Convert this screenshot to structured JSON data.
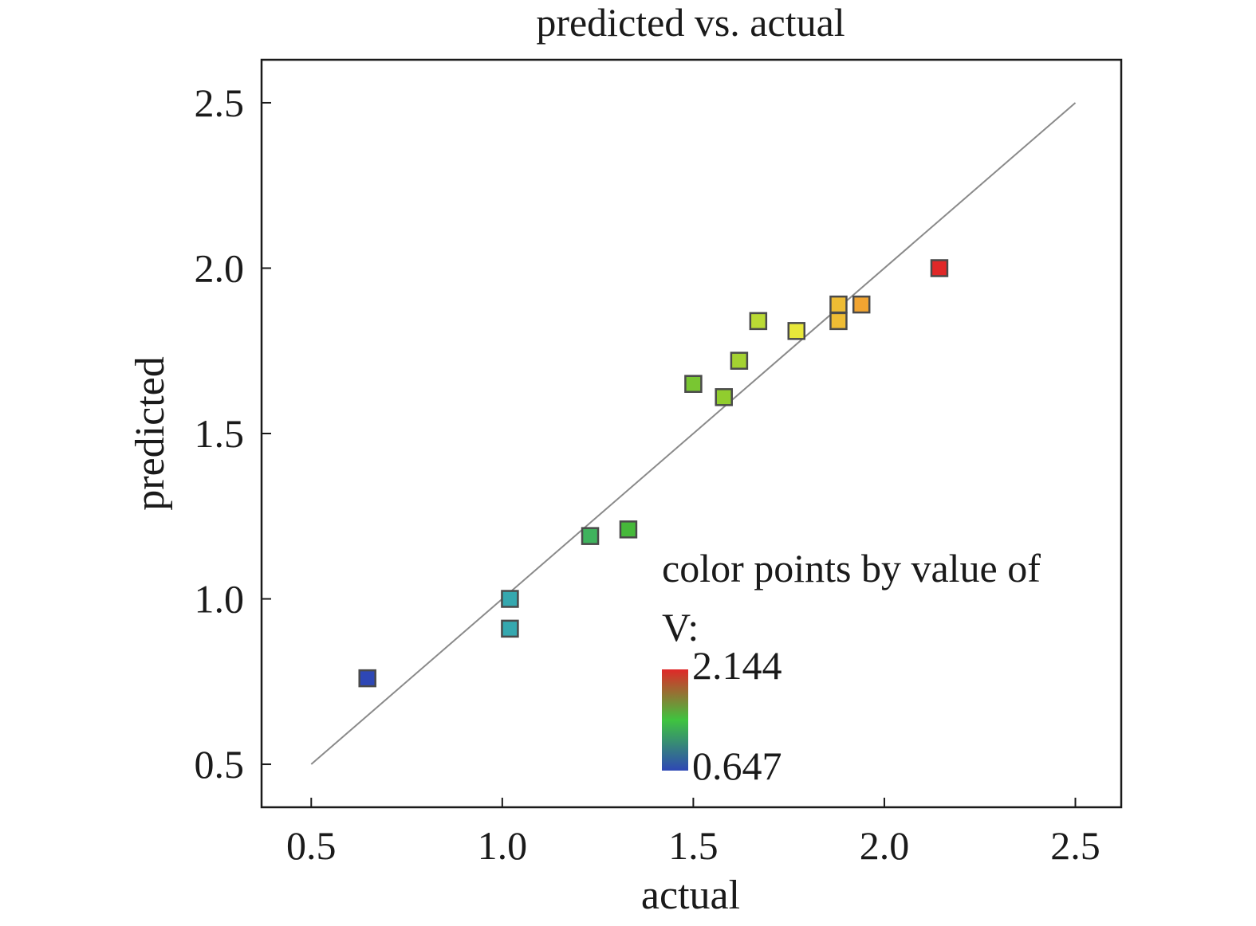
{
  "chart_data": {
    "type": "scatter",
    "title": "predicted vs. actual",
    "xlabel": "actual",
    "ylabel": "predicted",
    "xlim": [
      0.37,
      2.62
    ],
    "ylim": [
      0.37,
      2.63
    ],
    "x_ticks": [
      "0.5",
      "1.0",
      "1.5",
      "2.0",
      "2.5"
    ],
    "y_ticks": [
      "0.5",
      "1.0",
      "1.5",
      "2.0",
      "2.5"
    ],
    "x_tick_values": [
      0.5,
      1.0,
      1.5,
      2.0,
      2.5
    ],
    "y_tick_values": [
      0.5,
      1.0,
      1.5,
      2.0,
      2.5
    ],
    "grid": false,
    "reference_line": {
      "x": [
        0.5,
        2.5
      ],
      "y": [
        0.5,
        2.5
      ],
      "color": "#8a8a8a"
    },
    "points": [
      {
        "x": 0.647,
        "y": 0.76,
        "v": 0.647
      },
      {
        "x": 1.02,
        "y": 1.0,
        "v": 1.02
      },
      {
        "x": 1.02,
        "y": 0.91,
        "v": 1.02
      },
      {
        "x": 1.23,
        "y": 1.19,
        "v": 1.23
      },
      {
        "x": 1.33,
        "y": 1.21,
        "v": 1.33
      },
      {
        "x": 1.5,
        "y": 1.65,
        "v": 1.5
      },
      {
        "x": 1.58,
        "y": 1.61,
        "v": 1.58
      },
      {
        "x": 1.62,
        "y": 1.72,
        "v": 1.62
      },
      {
        "x": 1.67,
        "y": 1.84,
        "v": 1.67
      },
      {
        "x": 1.77,
        "y": 1.81,
        "v": 1.77
      },
      {
        "x": 1.88,
        "y": 1.89,
        "v": 1.88
      },
      {
        "x": 1.88,
        "y": 1.84,
        "v": 1.88
      },
      {
        "x": 1.94,
        "y": 1.89,
        "v": 1.94
      },
      {
        "x": 2.144,
        "y": 2.0,
        "v": 2.144
      }
    ],
    "colorbar": {
      "title_line1": "color points by value of",
      "title_line2": "V:",
      "max_label": "2.144",
      "min_label": "0.647",
      "min": 0.647,
      "max": 2.144,
      "stops": [
        {
          "t": 0.0,
          "color": "#2e47b5"
        },
        {
          "t": 0.22,
          "color": "#33a6c0"
        },
        {
          "t": 0.45,
          "color": "#43b83a"
        },
        {
          "t": 0.62,
          "color": "#8fcc2e"
        },
        {
          "t": 0.75,
          "color": "#e8e83a"
        },
        {
          "t": 0.88,
          "color": "#f29a30"
        },
        {
          "t": 1.0,
          "color": "#e02828"
        }
      ],
      "bar_stops": [
        {
          "t": 0.0,
          "color": "#2e47b5"
        },
        {
          "t": 0.5,
          "color": "#3fc43f"
        },
        {
          "t": 1.0,
          "color": "#e02828"
        }
      ]
    }
  }
}
